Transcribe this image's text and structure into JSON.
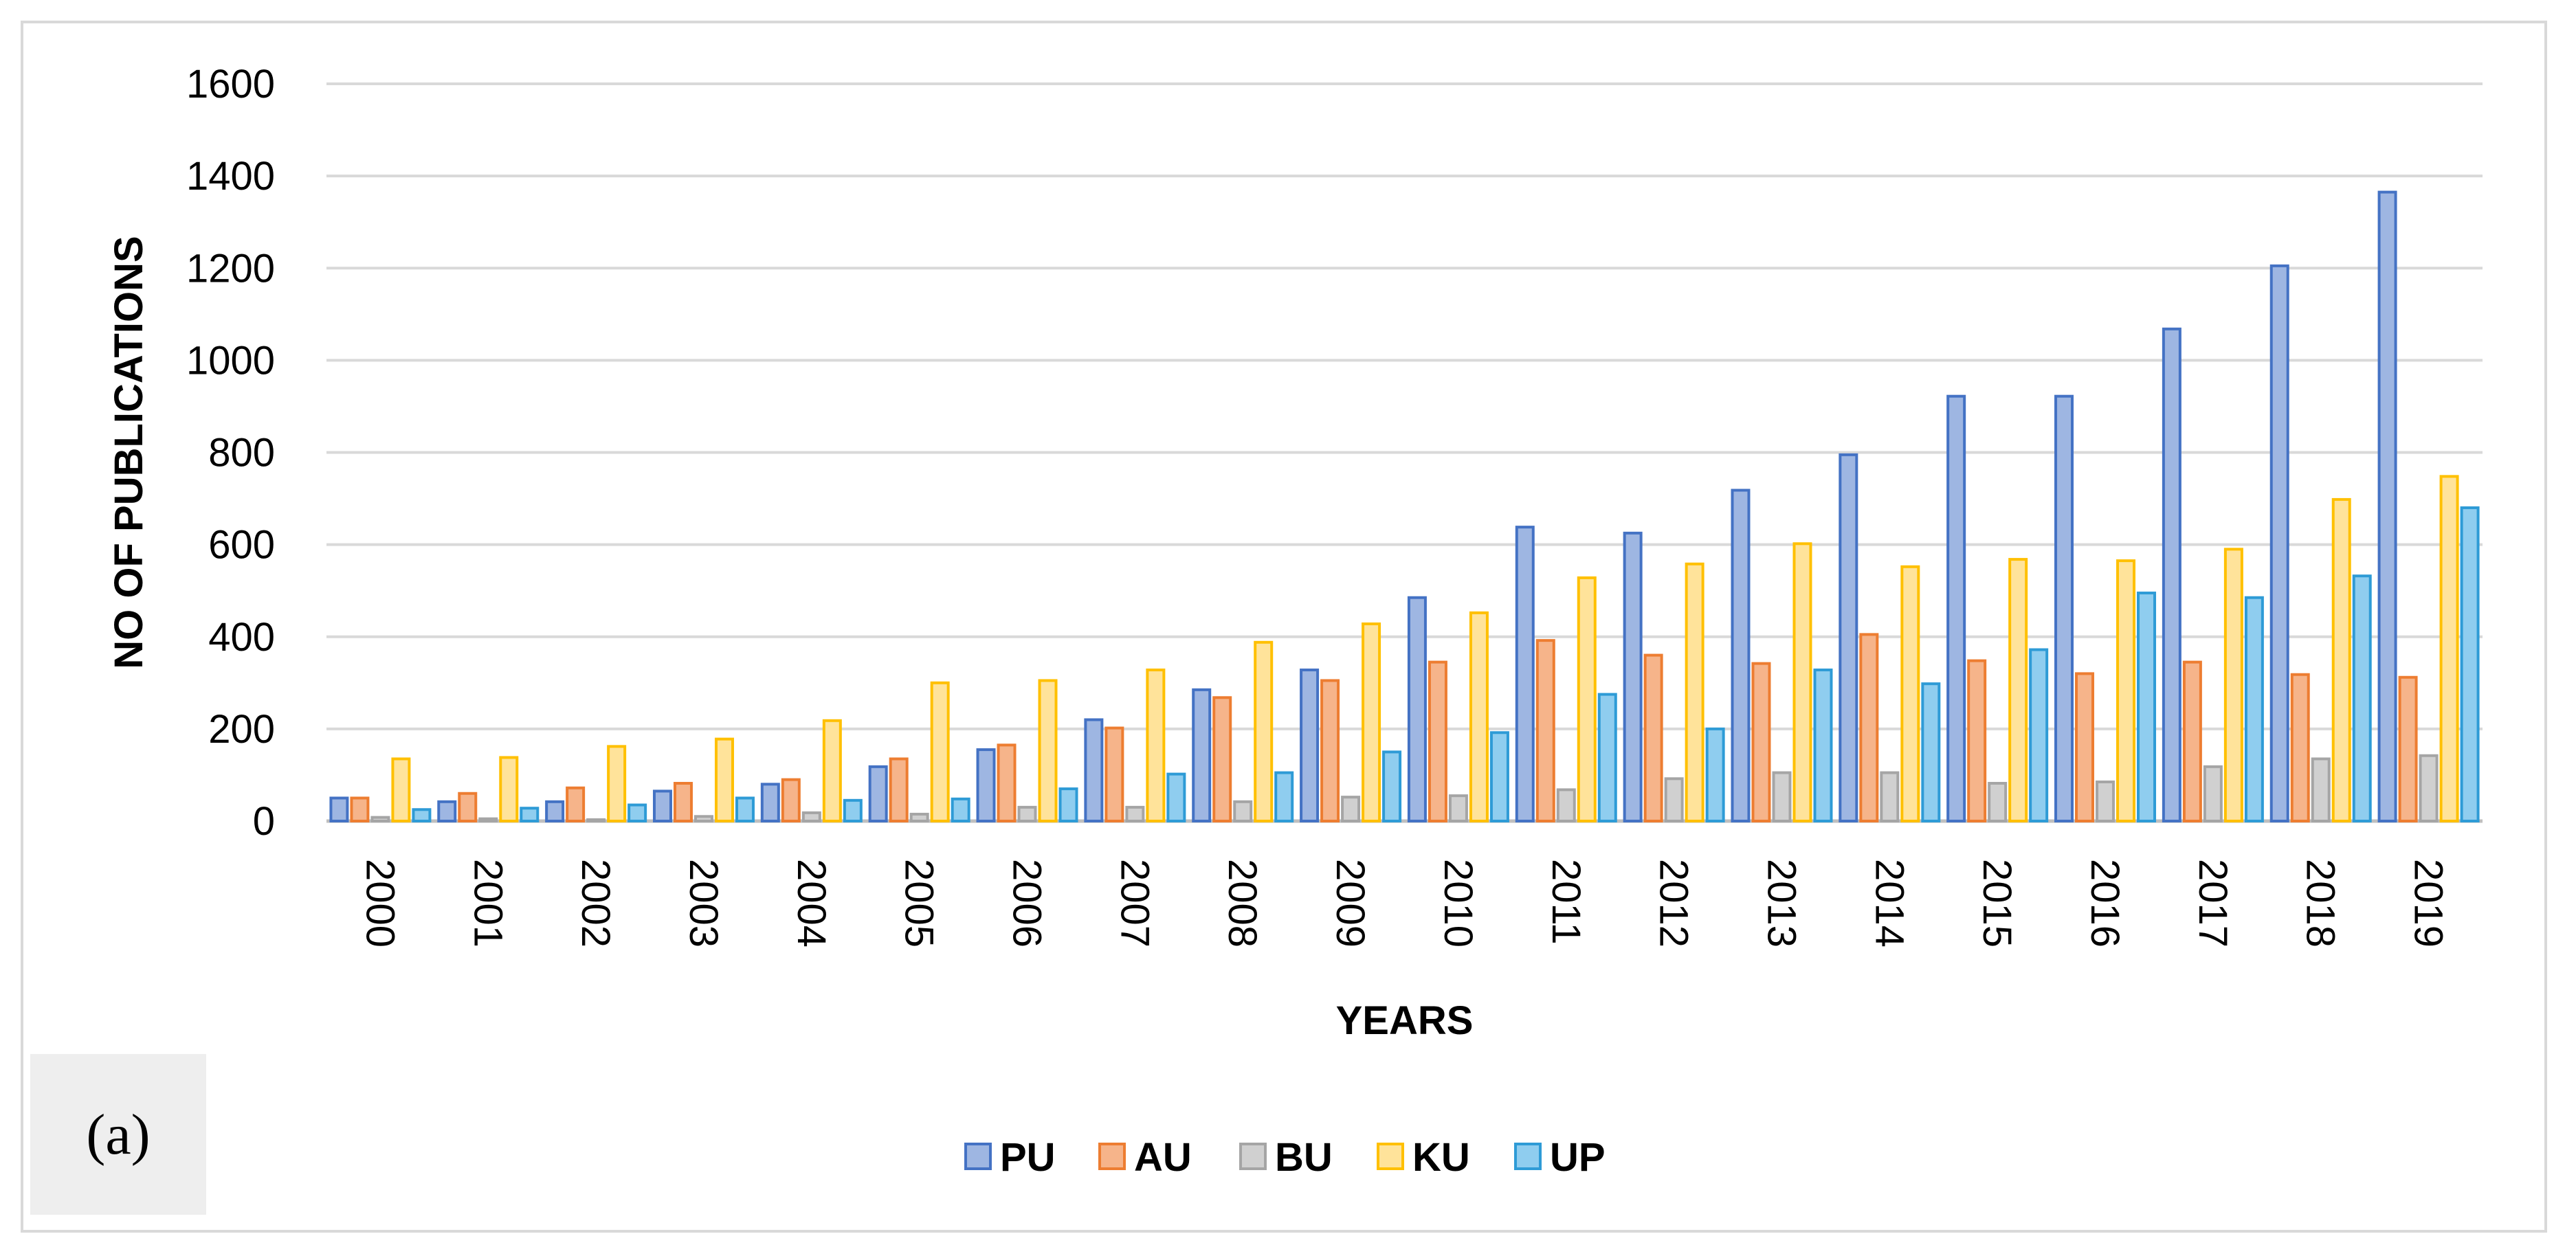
{
  "panel_label": "(a)",
  "chart_data": {
    "type": "bar",
    "title": "",
    "xlabel": "YEARS",
    "ylabel": "NO OF PUBLICATIONS",
    "ylim": [
      0,
      1600
    ],
    "yticks": [
      0,
      200,
      400,
      600,
      800,
      1000,
      1200,
      1400,
      1600
    ],
    "grid": true,
    "legend_position": "bottom",
    "categories": [
      "2000",
      "2001",
      "2002",
      "2003",
      "2004",
      "2005",
      "2006",
      "2007",
      "2008",
      "2009",
      "2010",
      "2011",
      "2012",
      "2013",
      "2014",
      "2015",
      "2016",
      "2017",
      "2018",
      "2019"
    ],
    "series": [
      {
        "name": "PU",
        "color": "#4472c4",
        "fill": "#9eb6e2",
        "values": [
          50,
          42,
          42,
          65,
          80,
          118,
          155,
          220,
          285,
          328,
          485,
          638,
          625,
          718,
          795,
          922,
          922,
          1068,
          1205,
          1365
        ]
      },
      {
        "name": "AU",
        "color": "#ed7d31",
        "fill": "#f6b48a",
        "values": [
          50,
          60,
          72,
          82,
          90,
          135,
          165,
          202,
          268,
          305,
          345,
          392,
          360,
          342,
          405,
          348,
          320,
          345,
          318,
          312
        ]
      },
      {
        "name": "BU",
        "color": "#a5a5a5",
        "fill": "#d0d0d0",
        "values": [
          8,
          5,
          3,
          10,
          18,
          15,
          30,
          30,
          42,
          52,
          55,
          68,
          92,
          105,
          105,
          82,
          85,
          118,
          135,
          142
        ]
      },
      {
        "name": "KU",
        "color": "#ffc000",
        "fill": "#ffe39a",
        "values": [
          135,
          138,
          162,
          178,
          218,
          300,
          305,
          328,
          388,
          428,
          452,
          528,
          558,
          602,
          552,
          568,
          565,
          590,
          698,
          748
        ]
      },
      {
        "name": "UP",
        "color": "#2e9bd6",
        "fill": "#8fcdef",
        "values": [
          25,
          28,
          35,
          50,
          45,
          48,
          70,
          102,
          105,
          150,
          192,
          275,
          200,
          328,
          298,
          372,
          495,
          485,
          532,
          680
        ]
      }
    ]
  }
}
